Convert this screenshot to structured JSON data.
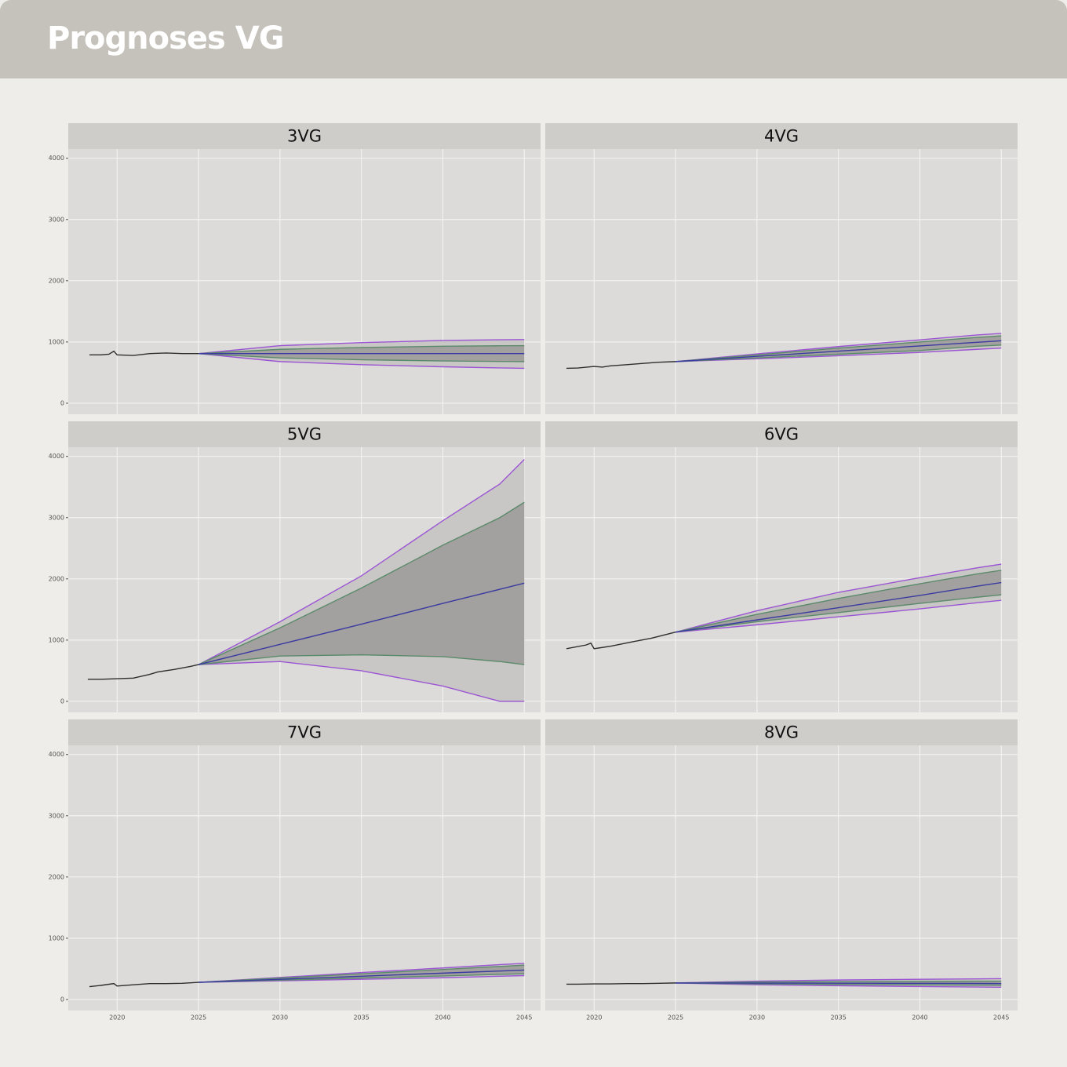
{
  "header": {
    "title": "Prognoses VG"
  },
  "colors": {
    "history": "#2e2e2e",
    "mean": "#3a3aa0",
    "band80": "#a3a19f",
    "line80": "#5b8a6b",
    "band95": "#c9c7c5",
    "line95": "#9b55d4"
  },
  "chart_data": [
    {
      "type": "line",
      "title": "3VG",
      "xlim": [
        2017,
        2046
      ],
      "ylim": [
        -180,
        4150
      ],
      "xticks": [
        2020,
        2025,
        2030,
        2035,
        2040,
        2045
      ],
      "yticks": [
        0,
        1000,
        2000,
        3000,
        4000
      ],
      "grid": true,
      "history": {
        "x": [
          2018.3,
          2019,
          2019.5,
          2019.8,
          2020,
          2021,
          2022,
          2023,
          2024,
          2025
        ],
        "values": [
          790,
          790,
          800,
          850,
          790,
          780,
          810,
          820,
          810,
          810
        ]
      },
      "forecast": {
        "x": [
          2025,
          2030,
          2035,
          2040,
          2043.5,
          2045
        ],
        "mean": [
          810,
          810,
          810,
          810,
          810,
          810
        ],
        "lo80": [
          810,
          740,
          710,
          690,
          682,
          680
        ],
        "hi80": [
          810,
          880,
          910,
          930,
          938,
          940
        ],
        "lo95": [
          810,
          680,
          630,
          595,
          576,
          570
        ],
        "hi95": [
          810,
          940,
          990,
          1025,
          1036,
          1040
        ]
      }
    },
    {
      "type": "line",
      "title": "4VG",
      "xlim": [
        2017,
        2046
      ],
      "ylim": [
        -180,
        4150
      ],
      "xticks": [
        2020,
        2025,
        2030,
        2035,
        2040,
        2045
      ],
      "yticks": [
        0,
        1000,
        2000,
        3000,
        4000
      ],
      "grid": true,
      "history": {
        "x": [
          2018.3,
          2019,
          2020,
          2020.5,
          2021,
          2022,
          2023,
          2024,
          2025
        ],
        "values": [
          570,
          575,
          600,
          590,
          610,
          630,
          650,
          670,
          680
        ]
      },
      "forecast": {
        "x": [
          2025,
          2030,
          2035,
          2040,
          2043.5,
          2045
        ],
        "mean": [
          680,
          765,
          850,
          935,
          995,
          1020
        ],
        "lo80": [
          680,
          740,
          800,
          860,
          930,
          950
        ],
        "hi80": [
          680,
          790,
          900,
          1000,
          1075,
          1100
        ],
        "lo95": [
          680,
          725,
          775,
          830,
          880,
          900
        ],
        "hi95": [
          680,
          805,
          925,
          1035,
          1115,
          1140
        ]
      }
    },
    {
      "type": "line",
      "title": "5VG",
      "xlim": [
        2017,
        2046
      ],
      "ylim": [
        -180,
        4150
      ],
      "xticks": [
        2020,
        2025,
        2030,
        2035,
        2040,
        2045
      ],
      "yticks": [
        0,
        1000,
        2000,
        3000,
        4000
      ],
      "grid": true,
      "history": {
        "x": [
          2018.2,
          2019,
          2020,
          2021,
          2022,
          2022.5,
          2023.5,
          2024.5,
          2025
        ],
        "values": [
          360,
          360,
          370,
          380,
          440,
          480,
          520,
          570,
          600
        ]
      },
      "forecast": {
        "x": [
          2025,
          2030,
          2035,
          2040,
          2043.5,
          2045
        ],
        "mean": [
          600,
          930,
          1260,
          1600,
          1830,
          1930
        ],
        "lo80": [
          600,
          740,
          760,
          730,
          650,
          600
        ],
        "hi80": [
          600,
          1200,
          1850,
          2550,
          3000,
          3250
        ],
        "lo95": [
          600,
          650,
          500,
          250,
          0,
          0
        ],
        "hi95": [
          600,
          1300,
          2050,
          2950,
          3550,
          3950
        ]
      }
    },
    {
      "type": "line",
      "title": "6VG",
      "xlim": [
        2017,
        2046
      ],
      "ylim": [
        -180,
        4150
      ],
      "xticks": [
        2020,
        2025,
        2030,
        2035,
        2040,
        2045
      ],
      "yticks": [
        0,
        1000,
        2000,
        3000,
        4000
      ],
      "grid": true,
      "history": {
        "x": [
          2018.3,
          2019.5,
          2019.8,
          2020,
          2021,
          2022.5,
          2023.5,
          2025
        ],
        "values": [
          860,
          920,
          950,
          860,
          900,
          980,
          1030,
          1130
        ]
      },
      "forecast": {
        "x": [
          2025,
          2030,
          2035,
          2040,
          2043.5,
          2045
        ],
        "mean": [
          1130,
          1330,
          1530,
          1730,
          1880,
          1940
        ],
        "lo80": [
          1130,
          1300,
          1450,
          1600,
          1700,
          1740
        ],
        "hi80": [
          1130,
          1420,
          1680,
          1920,
          2080,
          2140
        ],
        "lo95": [
          1130,
          1250,
          1380,
          1510,
          1610,
          1650
        ],
        "hi95": [
          1130,
          1480,
          1780,
          2020,
          2180,
          2240
        ]
      }
    },
    {
      "type": "line",
      "title": "7VG",
      "xlim": [
        2017,
        2046
      ],
      "ylim": [
        -180,
        4150
      ],
      "xticks": [
        2020,
        2025,
        2030,
        2035,
        2040,
        2045
      ],
      "yticks": [
        0,
        1000,
        2000,
        3000,
        4000
      ],
      "grid": true,
      "history": {
        "x": [
          2018.3,
          2019,
          2019.8,
          2020,
          2021,
          2022,
          2023,
          2024,
          2025
        ],
        "values": [
          210,
          230,
          260,
          220,
          240,
          260,
          260,
          265,
          280
        ]
      },
      "forecast": {
        "x": [
          2025,
          2030,
          2035,
          2040,
          2043.5,
          2045
        ],
        "mean": [
          280,
          330,
          380,
          430,
          465,
          480
        ],
        "lo80": [
          280,
          315,
          350,
          385,
          410,
          420
        ],
        "hi80": [
          280,
          350,
          420,
          490,
          540,
          560
        ],
        "lo95": [
          280,
          305,
          330,
          355,
          380,
          390
        ],
        "hi95": [
          280,
          360,
          440,
          515,
          570,
          590
        ]
      }
    },
    {
      "type": "line",
      "title": "8VG",
      "xlim": [
        2017,
        2046
      ],
      "ylim": [
        -180,
        4150
      ],
      "xticks": [
        2020,
        2025,
        2030,
        2035,
        2040,
        2045
      ],
      "yticks": [
        0,
        1000,
        2000,
        3000,
        4000
      ],
      "grid": true,
      "history": {
        "x": [
          2018.3,
          2019,
          2020,
          2021,
          2022,
          2023,
          2024,
          2025
        ],
        "values": [
          250,
          250,
          255,
          255,
          260,
          260,
          265,
          270
        ]
      },
      "forecast": {
        "x": [
          2025,
          2030,
          2035,
          2040,
          2043.5,
          2045
        ],
        "mean": [
          270,
          268,
          266,
          264,
          262,
          260
        ],
        "lo80": [
          270,
          255,
          245,
          238,
          232,
          230
        ],
        "hi80": [
          270,
          285,
          292,
          296,
          299,
          300
        ],
        "lo95": [
          270,
          240,
          225,
          212,
          204,
          200
        ],
        "hi95": [
          270,
          300,
          318,
          330,
          337,
          340
        ]
      }
    }
  ]
}
